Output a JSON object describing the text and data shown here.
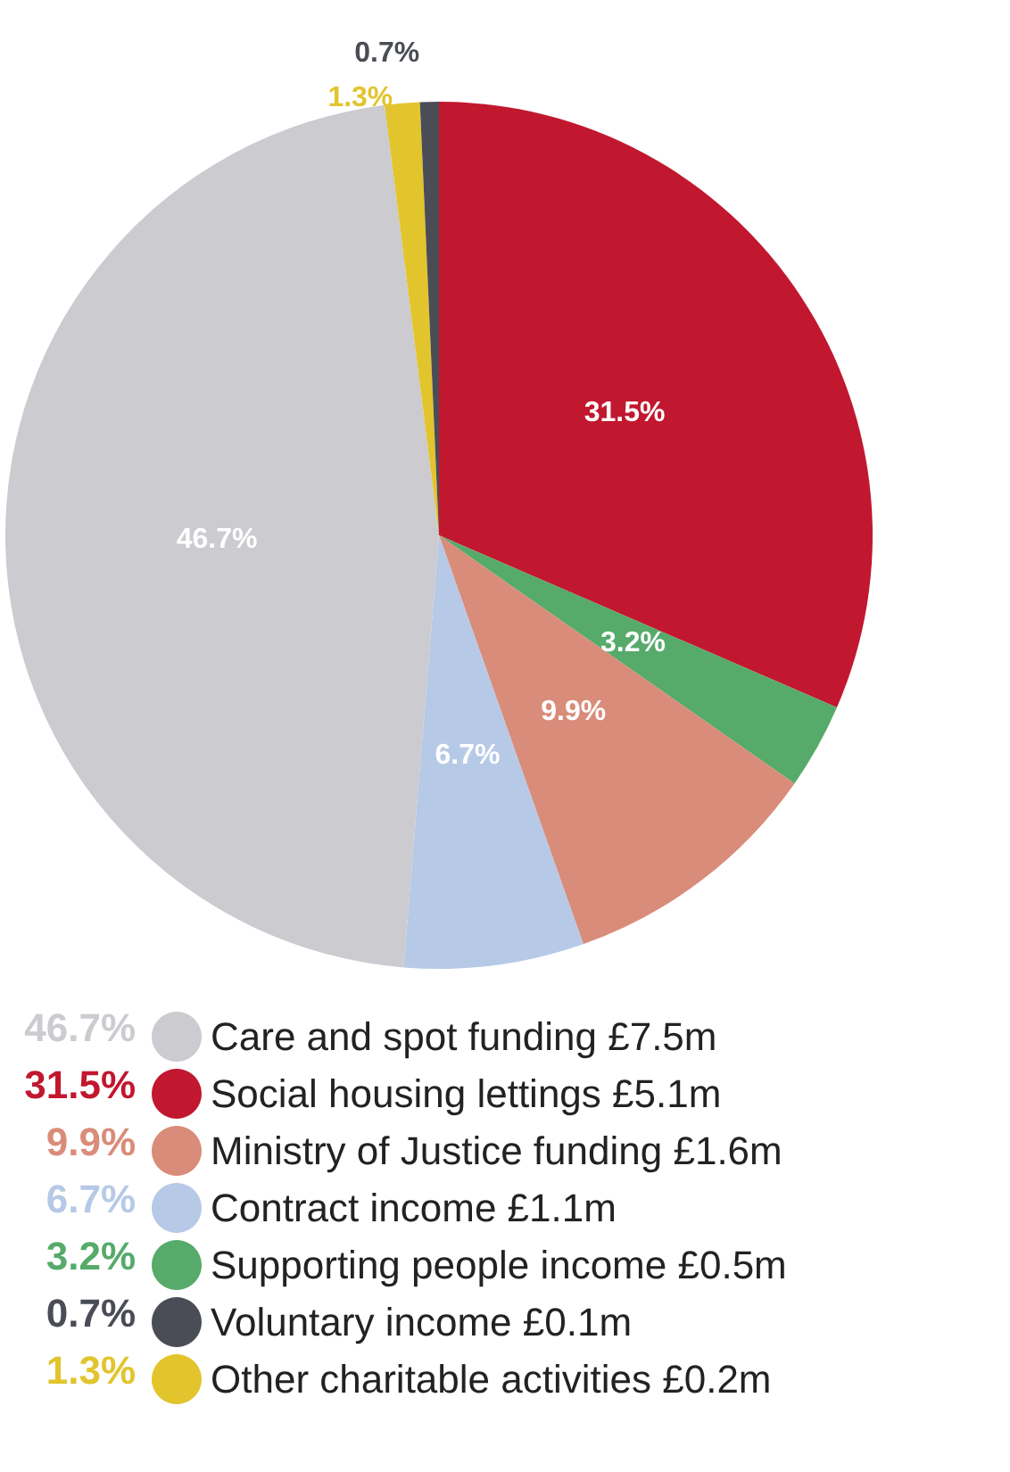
{
  "chart_data": {
    "type": "pie",
    "categories": [
      "Social housing lettings £5.1m",
      "Supporting people income £0.5m",
      "Ministry of Justice funding £1.6m",
      "Contract income £1.1m",
      "Care and spot funding £7.5m",
      "Other charitable activities £0.2m",
      "Voluntary income £0.1m"
    ],
    "values": [
      31.5,
      3.2,
      9.9,
      6.7,
      46.7,
      1.3,
      0.7
    ],
    "value_labels": [
      "31.5%",
      "3.2%",
      "9.9%",
      "6.7%",
      "46.7%",
      "1.3%",
      "0.7%"
    ],
    "colors": [
      "#c1182f",
      "#56aa6a",
      "#d98c79",
      "#b6c9e7",
      "#cbcbd0",
      "#e2c42d",
      "#4a4d55"
    ],
    "legend": "bottom"
  }
}
